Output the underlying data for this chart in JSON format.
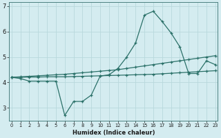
{
  "xlabel": "Humidex (Indice chaleur)",
  "bg_color": "#d4ecf0",
  "grid_color": "#b8d8dc",
  "line_color": "#2a7068",
  "x_ticks": [
    0,
    1,
    2,
    3,
    4,
    5,
    6,
    7,
    8,
    9,
    10,
    11,
    12,
    13,
    14,
    15,
    16,
    17,
    18,
    19,
    20,
    21,
    22,
    23
  ],
  "x_tick_labels": [
    "0",
    "1",
    "2",
    "3",
    "4",
    "5",
    "6",
    "7",
    "8",
    "9",
    "10",
    "11",
    "12",
    "13",
    "14",
    "15",
    "16",
    "17",
    "18",
    "19",
    "20",
    "21",
    "22",
    "23"
  ],
  "ylim": [
    2.5,
    7.15
  ],
  "yticks": [
    3,
    4,
    5,
    6,
    7
  ],
  "xlim": [
    -0.3,
    23.3
  ],
  "line1_x": [
    0,
    1,
    2,
    3,
    4,
    5,
    6,
    7,
    8,
    9,
    10,
    11,
    12,
    13,
    14,
    15,
    16,
    17,
    18,
    19,
    20,
    21,
    22,
    23
  ],
  "line1_y": [
    4.2,
    4.15,
    4.05,
    4.05,
    4.05,
    4.05,
    2.7,
    3.25,
    3.25,
    3.5,
    4.25,
    4.3,
    4.55,
    5.0,
    5.55,
    6.65,
    6.8,
    6.4,
    5.95,
    5.4,
    4.35,
    4.35,
    4.85,
    4.7
  ],
  "line2_x": [
    0,
    1,
    2,
    3,
    4,
    5,
    6,
    7,
    8,
    9,
    10,
    11,
    12,
    13,
    14,
    15,
    16,
    17,
    18,
    19,
    20,
    21,
    22,
    23
  ],
  "line2_y": [
    4.2,
    4.22,
    4.24,
    4.26,
    4.28,
    4.3,
    4.32,
    4.35,
    4.38,
    4.41,
    4.44,
    4.47,
    4.5,
    4.55,
    4.6,
    4.65,
    4.7,
    4.75,
    4.8,
    4.85,
    4.9,
    4.95,
    5.0,
    5.05
  ],
  "line3_x": [
    0,
    1,
    2,
    3,
    4,
    5,
    6,
    7,
    8,
    9,
    10,
    11,
    12,
    13,
    14,
    15,
    16,
    17,
    18,
    19,
    20,
    21,
    22,
    23
  ],
  "line3_y": [
    4.2,
    4.2,
    4.21,
    4.21,
    4.22,
    4.22,
    4.22,
    4.23,
    4.24,
    4.25,
    4.26,
    4.27,
    4.28,
    4.29,
    4.3,
    4.31,
    4.32,
    4.34,
    4.36,
    4.38,
    4.4,
    4.42,
    4.44,
    4.46
  ]
}
